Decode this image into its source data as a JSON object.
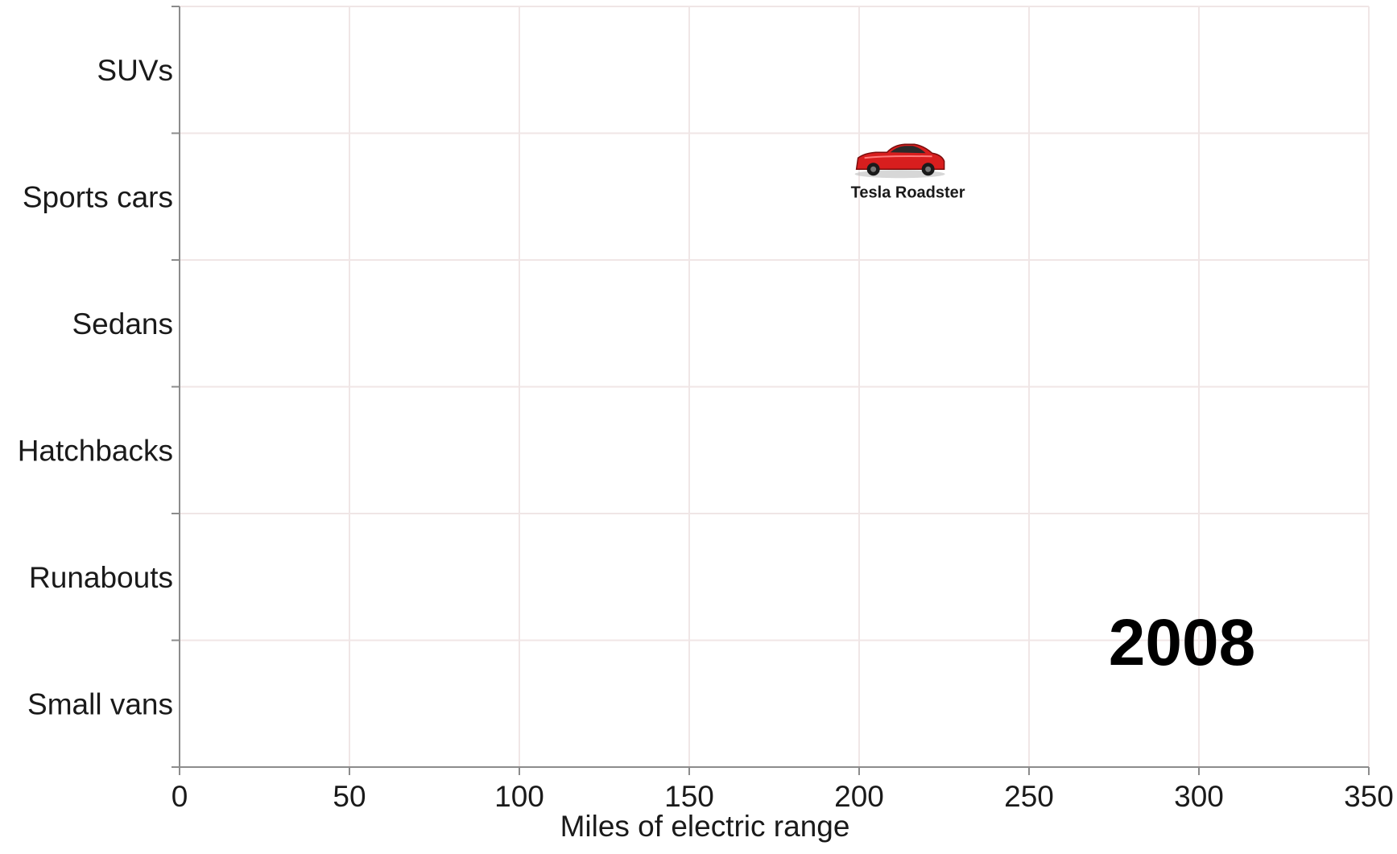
{
  "chart_data": {
    "type": "scatter",
    "title": "",
    "xlabel": "Miles of electric range",
    "ylabel": "",
    "xlim": [
      0,
      350
    ],
    "x_ticks": [
      0,
      50,
      100,
      150,
      200,
      250,
      300,
      350
    ],
    "x_tick_labels": [
      "0",
      "50",
      "100",
      "150",
      "200",
      "250",
      "300",
      "350"
    ],
    "categories": [
      "SUVs",
      "Sports cars",
      "Sedans",
      "Hatchbacks",
      "Runabouts",
      "Small vans"
    ],
    "grid": true,
    "annotation": "2008",
    "points": [
      {
        "label": "Tesla Roadster",
        "category": "Sports cars",
        "x": 212,
        "marker": "red-sports-car-icon"
      }
    ]
  },
  "colors": {
    "gridline": "#f0e6e6",
    "axis": "#8c8c8c",
    "car_body": "#d81e1e"
  }
}
